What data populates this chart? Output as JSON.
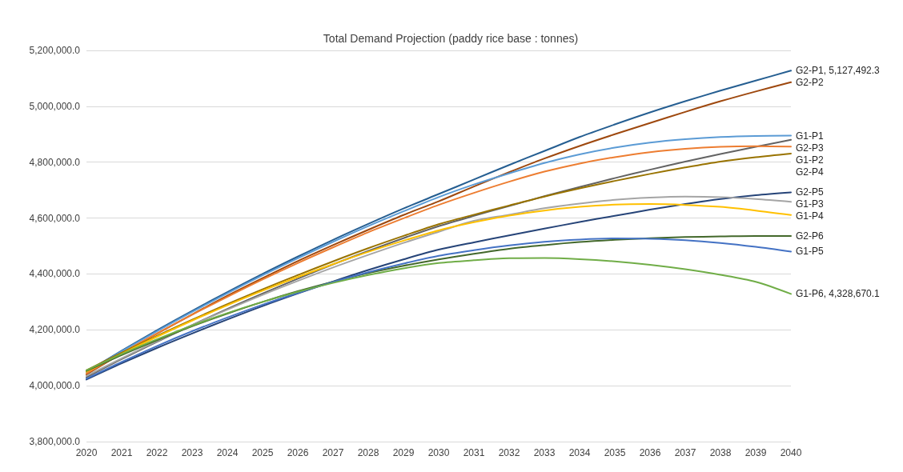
{
  "chart_data": {
    "type": "line",
    "title": "Total Demand Projection (paddy rice base : tonnes)",
    "categories": [
      "2020",
      "2021",
      "2022",
      "2023",
      "2024",
      "2025",
      "2026",
      "2027",
      "2028",
      "2029",
      "2030",
      "2031",
      "2032",
      "2033",
      "2034",
      "2035",
      "2036",
      "2037",
      "2038",
      "2039",
      "2040"
    ],
    "ylim": [
      3800000,
      5200000
    ],
    "yticks": [
      {
        "value": 3800000,
        "label": "3,800,000.0"
      },
      {
        "value": 4000000,
        "label": "4,000,000.0"
      },
      {
        "value": 4200000,
        "label": "4,200,000.0"
      },
      {
        "value": 4400000,
        "label": "4,400,000.0"
      },
      {
        "value": 4600000,
        "label": "4,600,000.0"
      },
      {
        "value": 4800000,
        "label": "4,800,000.0"
      },
      {
        "value": 5000000,
        "label": "5,000,000.0"
      },
      {
        "value": 5200000,
        "label": "5,200,000.0"
      }
    ],
    "grid": "y",
    "legend": false,
    "marker": "none",
    "line_style": "solid",
    "series": [
      {
        "name": "G2-P1,",
        "color": "#255e91",
        "values": [
          4050000,
          4125000,
          4198000,
          4268000,
          4335000,
          4400000,
          4462000,
          4522000,
          4579000,
          4634000,
          4686000,
          4738000,
          4790000,
          4840000,
          4890000,
          4935000,
          4978000,
          5018000,
          5056000,
          5092000,
          5127492.3
        ],
        "value_labels": [
          null,
          null,
          null,
          null,
          null,
          null,
          null,
          null,
          null,
          null,
          null,
          null,
          null,
          null,
          null,
          null,
          null,
          null,
          null,
          null,
          "5,127,492.3"
        ]
      },
      {
        "name": "G2-P2",
        "color": "#9e480e",
        "values": [
          4040000,
          4115000,
          4186000,
          4255000,
          4322000,
          4385000,
          4446000,
          4503000,
          4558000,
          4611000,
          4660000,
          4713000,
          4764000,
          4813000,
          4858000,
          4900000,
          4940000,
          4980000,
          5018000,
          5053000,
          5086000
        ]
      },
      {
        "name": "G1-P1",
        "color": "#5b9bd5",
        "values": [
          4048000,
          4123000,
          4195000,
          4264000,
          4331000,
          4395000,
          4456000,
          4515000,
          4571000,
          4624000,
          4675000,
          4720000,
          4760000,
          4797000,
          4828000,
          4852000,
          4870000,
          4882000,
          4890000,
          4894000,
          4895000
        ]
      },
      {
        "name": "G2-P3",
        "color": "#636363",
        "values": [
          4030000,
          4095000,
          4157000,
          4217000,
          4275000,
          4330000,
          4383000,
          4434000,
          4482000,
          4528000,
          4571000,
          4608000,
          4643000,
          4678000,
          4711000,
          4743000,
          4773000,
          4802000,
          4829000,
          4855000,
          4880000
        ]
      },
      {
        "name": "G1-P2",
        "color": "#ed7d31",
        "values": [
          4044000,
          4117000,
          4187000,
          4254000,
          4318000,
          4380000,
          4439000,
          4495000,
          4549000,
          4599000,
          4647000,
          4690000,
          4730000,
          4766000,
          4795000,
          4818000,
          4836000,
          4848000,
          4855000,
          4857000,
          4856000
        ]
      },
      {
        "name": "G2-P4",
        "color": "#997300",
        "values": [
          4055000,
          4118000,
          4178000,
          4236000,
          4292000,
          4345000,
          4396000,
          4445000,
          4492000,
          4536000,
          4578000,
          4612000,
          4645000,
          4677000,
          4706000,
          4733000,
          4758000,
          4781000,
          4802000,
          4818000,
          4831000
        ]
      },
      {
        "name": "G2-P5",
        "color": "#264478",
        "values": [
          4022000,
          4080000,
          4135000,
          4187000,
          4237000,
          4285000,
          4330000,
          4373000,
          4414000,
          4452000,
          4487000,
          4513000,
          4538000,
          4562000,
          4586000,
          4608000,
          4630000,
          4650000,
          4668000,
          4682000,
          4692000
        ]
      },
      {
        "name": "G1-P3",
        "color": "#a5a5a5",
        "values": [
          4035000,
          4098000,
          4159000,
          4217000,
          4272000,
          4325000,
          4375000,
          4423000,
          4468000,
          4511000,
          4551000,
          4590000,
          4612000,
          4635000,
          4652000,
          4665000,
          4673000,
          4677000,
          4675000,
          4668000,
          4658000
        ]
      },
      {
        "name": "G1-P4",
        "color": "#ffc000",
        "values": [
          4050000,
          4114000,
          4175000,
          4233000,
          4288000,
          4340000,
          4389000,
          4435000,
          4479000,
          4519000,
          4556000,
          4585000,
          4609000,
          4627000,
          4640000,
          4648000,
          4650000,
          4647000,
          4640000,
          4627000,
          4611000
        ]
      },
      {
        "name": "G2-P6",
        "color": "#43682b",
        "values": [
          4053000,
          4110000,
          4163000,
          4213000,
          4258000,
          4300000,
          4338000,
          4372000,
          4403000,
          4429000,
          4452000,
          4472000,
          4490000,
          4503000,
          4514000,
          4522000,
          4528000,
          4532000,
          4534000,
          4536000,
          4536000
        ]
      },
      {
        "name": "G1-P5",
        "color": "#4472c4",
        "values": [
          4025000,
          4085000,
          4142000,
          4195000,
          4244000,
          4290000,
          4332000,
          4371000,
          4406000,
          4437000,
          4465000,
          4485000,
          4502000,
          4515000,
          4523000,
          4527000,
          4526000,
          4521000,
          4511000,
          4497000,
          4480000
        ]
      },
      {
        "name": "G1-P6,",
        "color": "#70ad47",
        "values": [
          4055000,
          4113000,
          4166000,
          4215000,
          4260000,
          4300000,
          4336000,
          4368000,
          4396000,
          4420000,
          4439000,
          4449000,
          4456000,
          4457000,
          4453000,
          4445000,
          4433000,
          4417000,
          4397000,
          4372000,
          4328670.1
        ],
        "value_labels": [
          null,
          null,
          null,
          null,
          null,
          null,
          null,
          null,
          null,
          null,
          null,
          null,
          null,
          null,
          null,
          null,
          null,
          null,
          null,
          null,
          "4,328,670.1"
        ]
      }
    ]
  }
}
